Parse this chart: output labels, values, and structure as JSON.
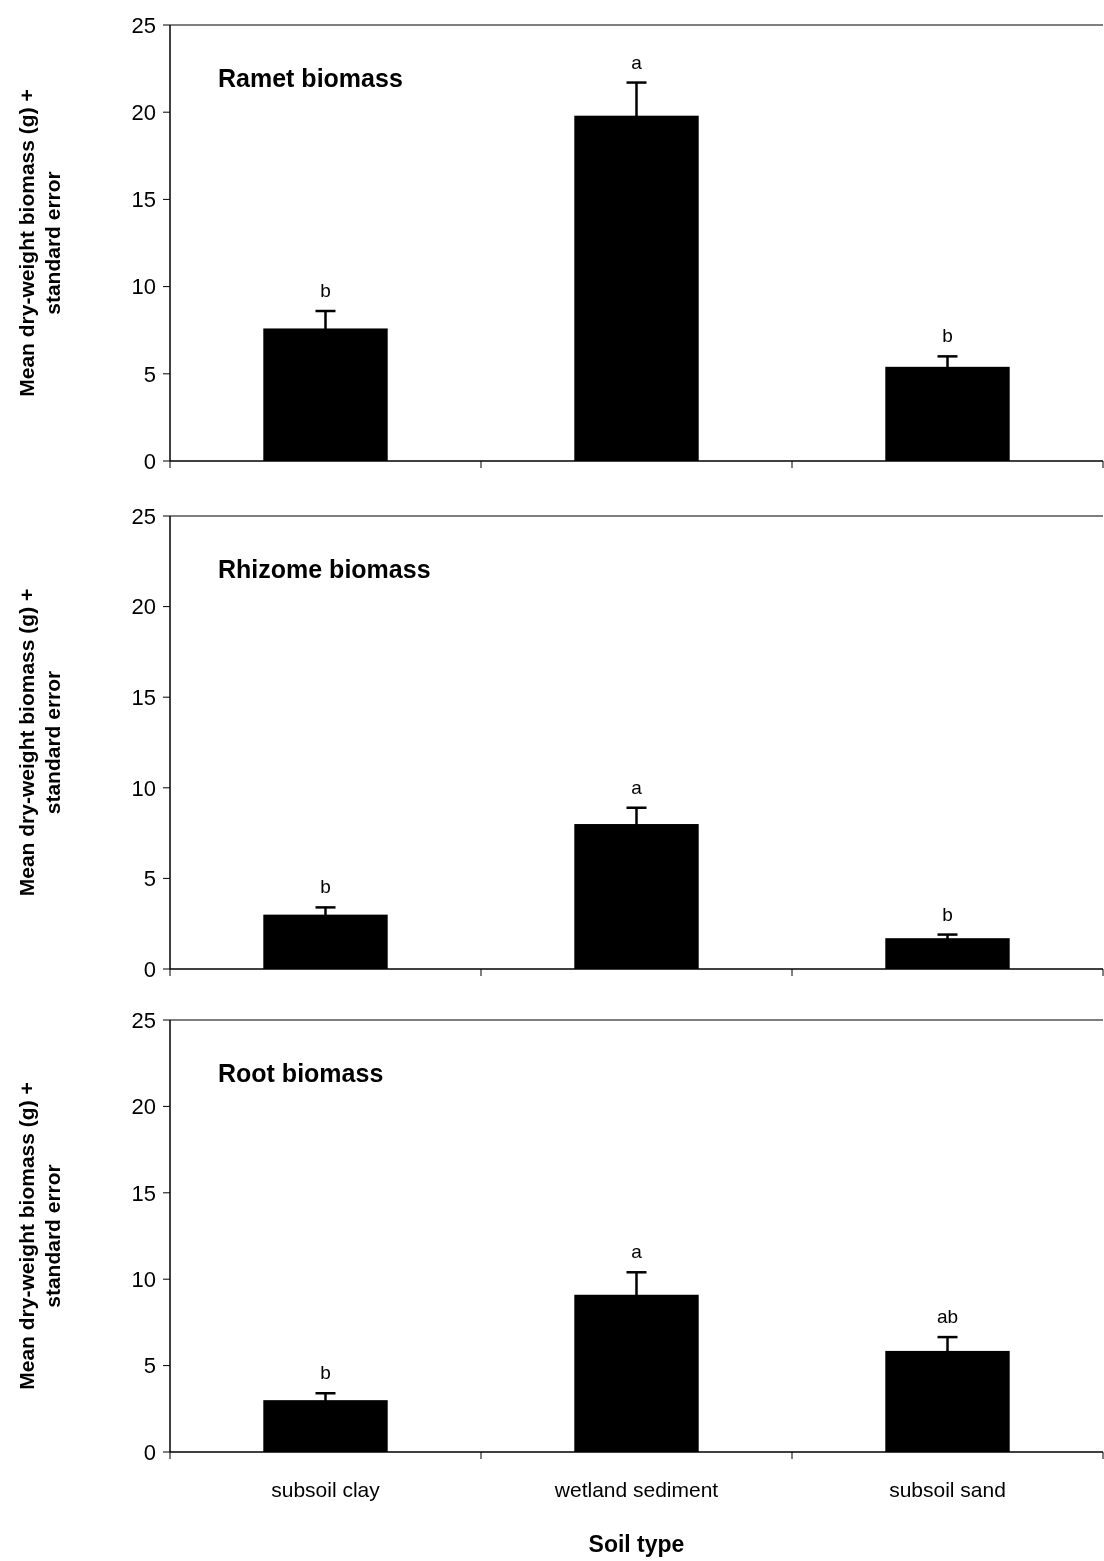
{
  "chart_data": [
    {
      "type": "bar",
      "title": "Ramet biomass",
      "ylabel": "Mean dry-weight biomass (g) + standard error",
      "categories": [
        "subsoil clay",
        "wetland sediment",
        "subsoil sand"
      ],
      "values": [
        7.6,
        19.8,
        5.4
      ],
      "errors": [
        1.0,
        1.9,
        0.6
      ],
      "color": "#000000",
      "ylim": [
        0,
        25
      ],
      "yticks": [
        0,
        5,
        10,
        15,
        20,
        25
      ],
      "grid": false,
      "tick_labels": "y",
      "annotations": [
        {
          "text": "b",
          "x": "subsoil clay",
          "y": 8.6
        },
        {
          "text": "a",
          "x": "wetland sediment",
          "y": 21.7
        },
        {
          "text": "b",
          "x": "subsoil sand",
          "y": 6.0
        }
      ]
    },
    {
      "type": "bar",
      "title": "Rhizome biomass",
      "ylabel": "Mean dry-weight biomass (g) + standard error",
      "categories": [
        "subsoil clay",
        "wetland sediment",
        "subsoil sand"
      ],
      "values": [
        3.0,
        8.0,
        1.7
      ],
      "errors": [
        0.4,
        0.9,
        0.2
      ],
      "color": "#000000",
      "ylim": [
        0,
        25
      ],
      "yticks": [
        0,
        5,
        10,
        15,
        20,
        25
      ],
      "grid": false,
      "tick_labels": "y",
      "annotations": [
        {
          "text": "b",
          "x": "subsoil clay",
          "y": 3.4
        },
        {
          "text": "a",
          "x": "wetland sediment",
          "y": 8.9
        },
        {
          "text": "b",
          "x": "subsoil sand",
          "y": 1.9
        }
      ]
    },
    {
      "type": "bar",
      "title": "Root biomass",
      "ylabel": "Mean dry-weight biomass (g) + standard error",
      "xlabel": "Soil type",
      "categories": [
        "subsoil clay",
        "wetland sediment",
        "subsoil sand"
      ],
      "values": [
        3.0,
        9.1,
        5.85
      ],
      "errors": [
        0.4,
        1.3,
        0.8
      ],
      "color": "#000000",
      "ylim": [
        0,
        25
      ],
      "yticks": [
        0,
        5,
        10,
        15,
        20,
        25
      ],
      "grid": false,
      "annotations": [
        {
          "text": "b",
          "x": "subsoil clay",
          "y": 3.4
        },
        {
          "text": "a",
          "x": "wetland sediment",
          "y": 10.4
        },
        {
          "text": "ab",
          "x": "subsoil sand",
          "y": 6.65
        }
      ]
    }
  ]
}
